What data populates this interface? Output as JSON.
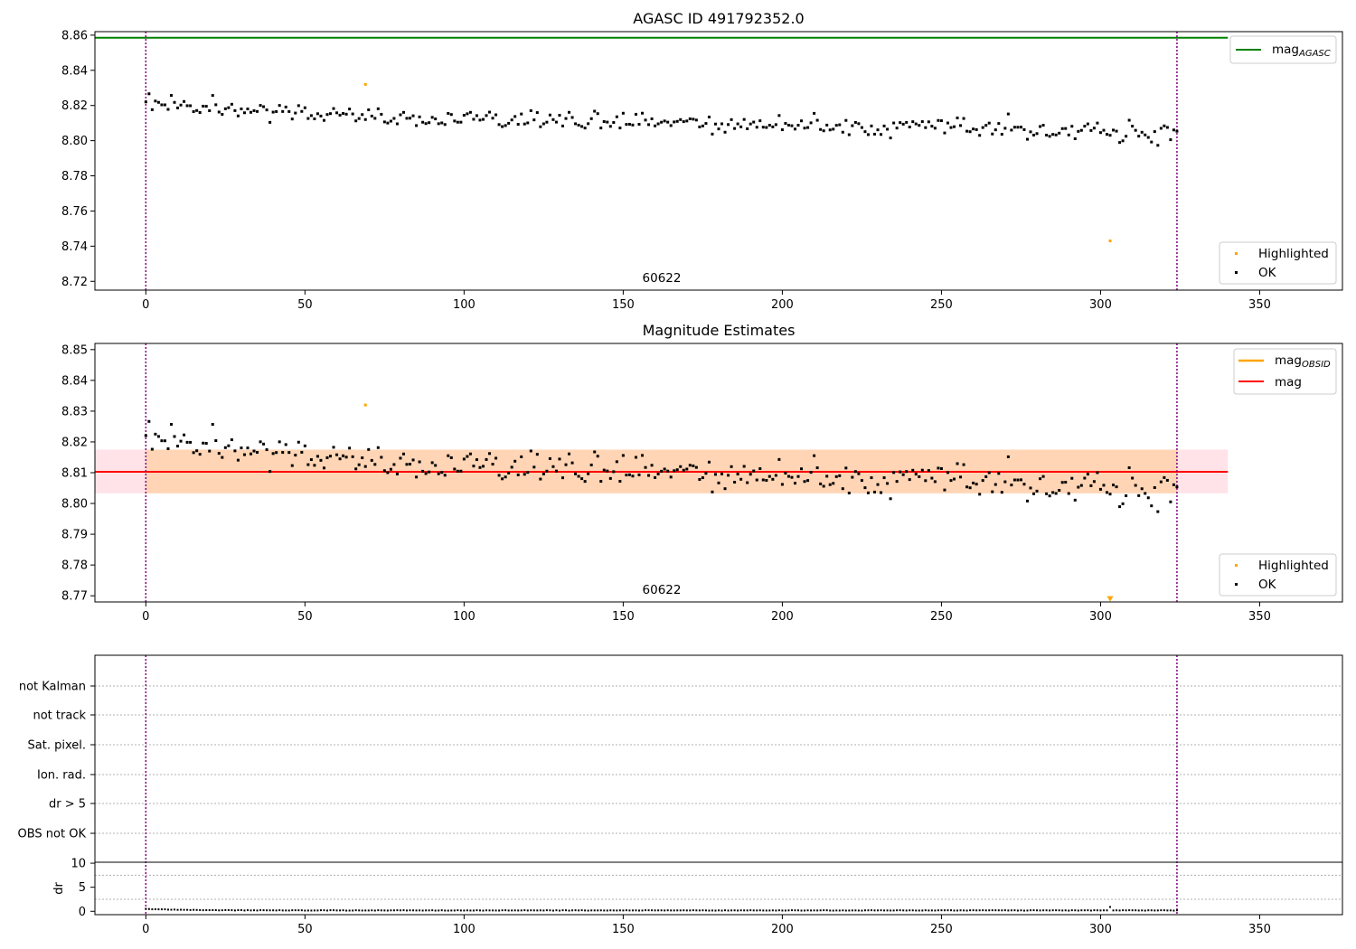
{
  "chart_data": [
    {
      "type": "scatter",
      "title": "AGASC ID 491792352.0",
      "xlim": [
        -16,
        376
      ],
      "ylim": [
        8.715,
        8.862
      ],
      "x_ticks": [
        0,
        50,
        100,
        150,
        200,
        250,
        300,
        350
      ],
      "y_ticks": [
        8.72,
        8.74,
        8.76,
        8.78,
        8.8,
        8.82,
        8.84,
        8.86
      ],
      "y_tick_labels": [
        "8.72",
        "8.74",
        "8.76",
        "8.78",
        "8.80",
        "8.82",
        "8.84",
        "8.86"
      ],
      "obsid_lines": [
        0,
        324
      ],
      "obsid_label": "60622",
      "hlines": [
        {
          "name_main": "mag",
          "name_sub": "AGASC",
          "y": 8.8585,
          "color": "#008000",
          "x_range": [
            -16,
            340
          ]
        }
      ],
      "legend_top": {
        "placement": "top-right",
        "items": [
          {
            "label_main": "mag",
            "label_sub": "AGASC",
            "color": "#008000"
          }
        ]
      },
      "legend_bottom": {
        "placement": "bottom-right",
        "items": [
          {
            "label": "Highlighted",
            "color": "#ffa500"
          },
          {
            "label": "OK",
            "color": "#000000"
          }
        ]
      },
      "highlighted": [
        {
          "x": 69,
          "y": 8.832
        },
        {
          "x": 303,
          "y": 8.743
        }
      ],
      "series_ok": {
        "n": 325,
        "mean": 8.8105,
        "trend": -0.012
      }
    },
    {
      "type": "scatter",
      "title": "Magnitude Estimates",
      "xlim": [
        -16,
        376
      ],
      "ylim": [
        8.768,
        8.852
      ],
      "x_ticks": [
        0,
        50,
        100,
        150,
        200,
        250,
        300,
        350
      ],
      "y_ticks": [
        8.77,
        8.78,
        8.79,
        8.8,
        8.81,
        8.82,
        8.83,
        8.84,
        8.85
      ],
      "y_tick_labels": [
        "8.77",
        "8.78",
        "8.79",
        "8.80",
        "8.81",
        "8.82",
        "8.83",
        "8.84",
        "8.85"
      ],
      "obsid_lines": [
        0,
        324
      ],
      "obsid_label": "60622",
      "mag_line": {
        "y": 8.8103,
        "color": "#ff0000",
        "x_range": [
          -16,
          340
        ]
      },
      "mag_band": {
        "y0": 8.8033,
        "y1": 8.8175,
        "color": "#ffc0cb",
        "x_range": [
          -16,
          340
        ]
      },
      "obsid_band": {
        "y0": 8.8033,
        "y1": 8.8175,
        "color": "#ffa500",
        "x_range": [
          0,
          324
        ]
      },
      "legend_top": {
        "placement": "top-right",
        "items": [
          {
            "label_main": "mag",
            "label_sub": "OBSID",
            "color": "#ffa500"
          },
          {
            "label_main": "mag",
            "label_sub": "",
            "color": "#ff0000"
          }
        ]
      },
      "legend_bottom": {
        "placement": "bottom-right",
        "items": [
          {
            "label": "Highlighted",
            "color": "#ffa500"
          },
          {
            "label": "OK",
            "color": "#000000"
          }
        ]
      },
      "highlighted": [
        {
          "x": 69,
          "y": 8.832
        }
      ],
      "out_of_range_marker": {
        "x": 303,
        "y": 8.769
      },
      "series_ok": {
        "n": 325,
        "mean": 8.8105,
        "trend": -0.012
      }
    },
    {
      "type": "scatter",
      "title": "",
      "xlim": [
        -16,
        376
      ],
      "x_ticks": [
        0,
        50,
        100,
        150,
        200,
        250,
        300,
        350
      ],
      "obsid_lines": [
        0,
        324
      ],
      "flag_labels": [
        "not Kalman",
        "not track",
        "Sat. pixel.",
        "Ion. rad.",
        "dr > 5",
        "OBS not OK"
      ],
      "dr": {
        "ylabel": "dr",
        "ylim": [
          -0.7,
          10.2
        ],
        "y_ticks": [
          0,
          5,
          10
        ],
        "y_tick_labels": [
          "0",
          "5",
          "10"
        ],
        "n": 325,
        "typical": 0.18,
        "start": 0.5,
        "spike": {
          "x": 303,
          "y": 0.9
        }
      }
    }
  ]
}
